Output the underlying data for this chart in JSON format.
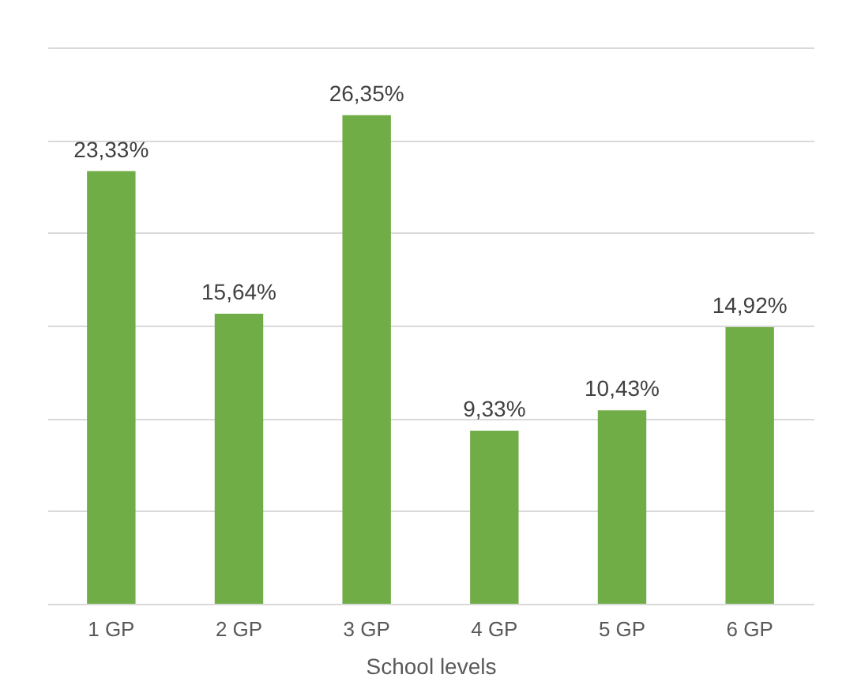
{
  "chart_data": {
    "type": "bar",
    "xlabel": "School levels",
    "categories": [
      "1 GP",
      "2 GP",
      "3 GP",
      "4 GP",
      "5 GP",
      "6 GP"
    ],
    "values": [
      23.33,
      15.64,
      26.35,
      9.33,
      10.43,
      14.92
    ],
    "value_labels": [
      "23,33%",
      "15,64%",
      "26,35%",
      "9,33%",
      "10,43%",
      "14,92%"
    ],
    "color": "#70ad47",
    "ylim": [
      0,
      30
    ],
    "yticks": [
      {
        "value": 0,
        "label": null
      },
      {
        "value": 5,
        "label": null
      },
      {
        "value": 10,
        "label": null
      },
      {
        "value": 15,
        "label": null
      },
      {
        "value": 20,
        "label": null
      },
      {
        "value": 25,
        "label": null
      },
      {
        "value": 30,
        "label": null
      }
    ],
    "grid": "y",
    "tick_labels": "x"
  }
}
